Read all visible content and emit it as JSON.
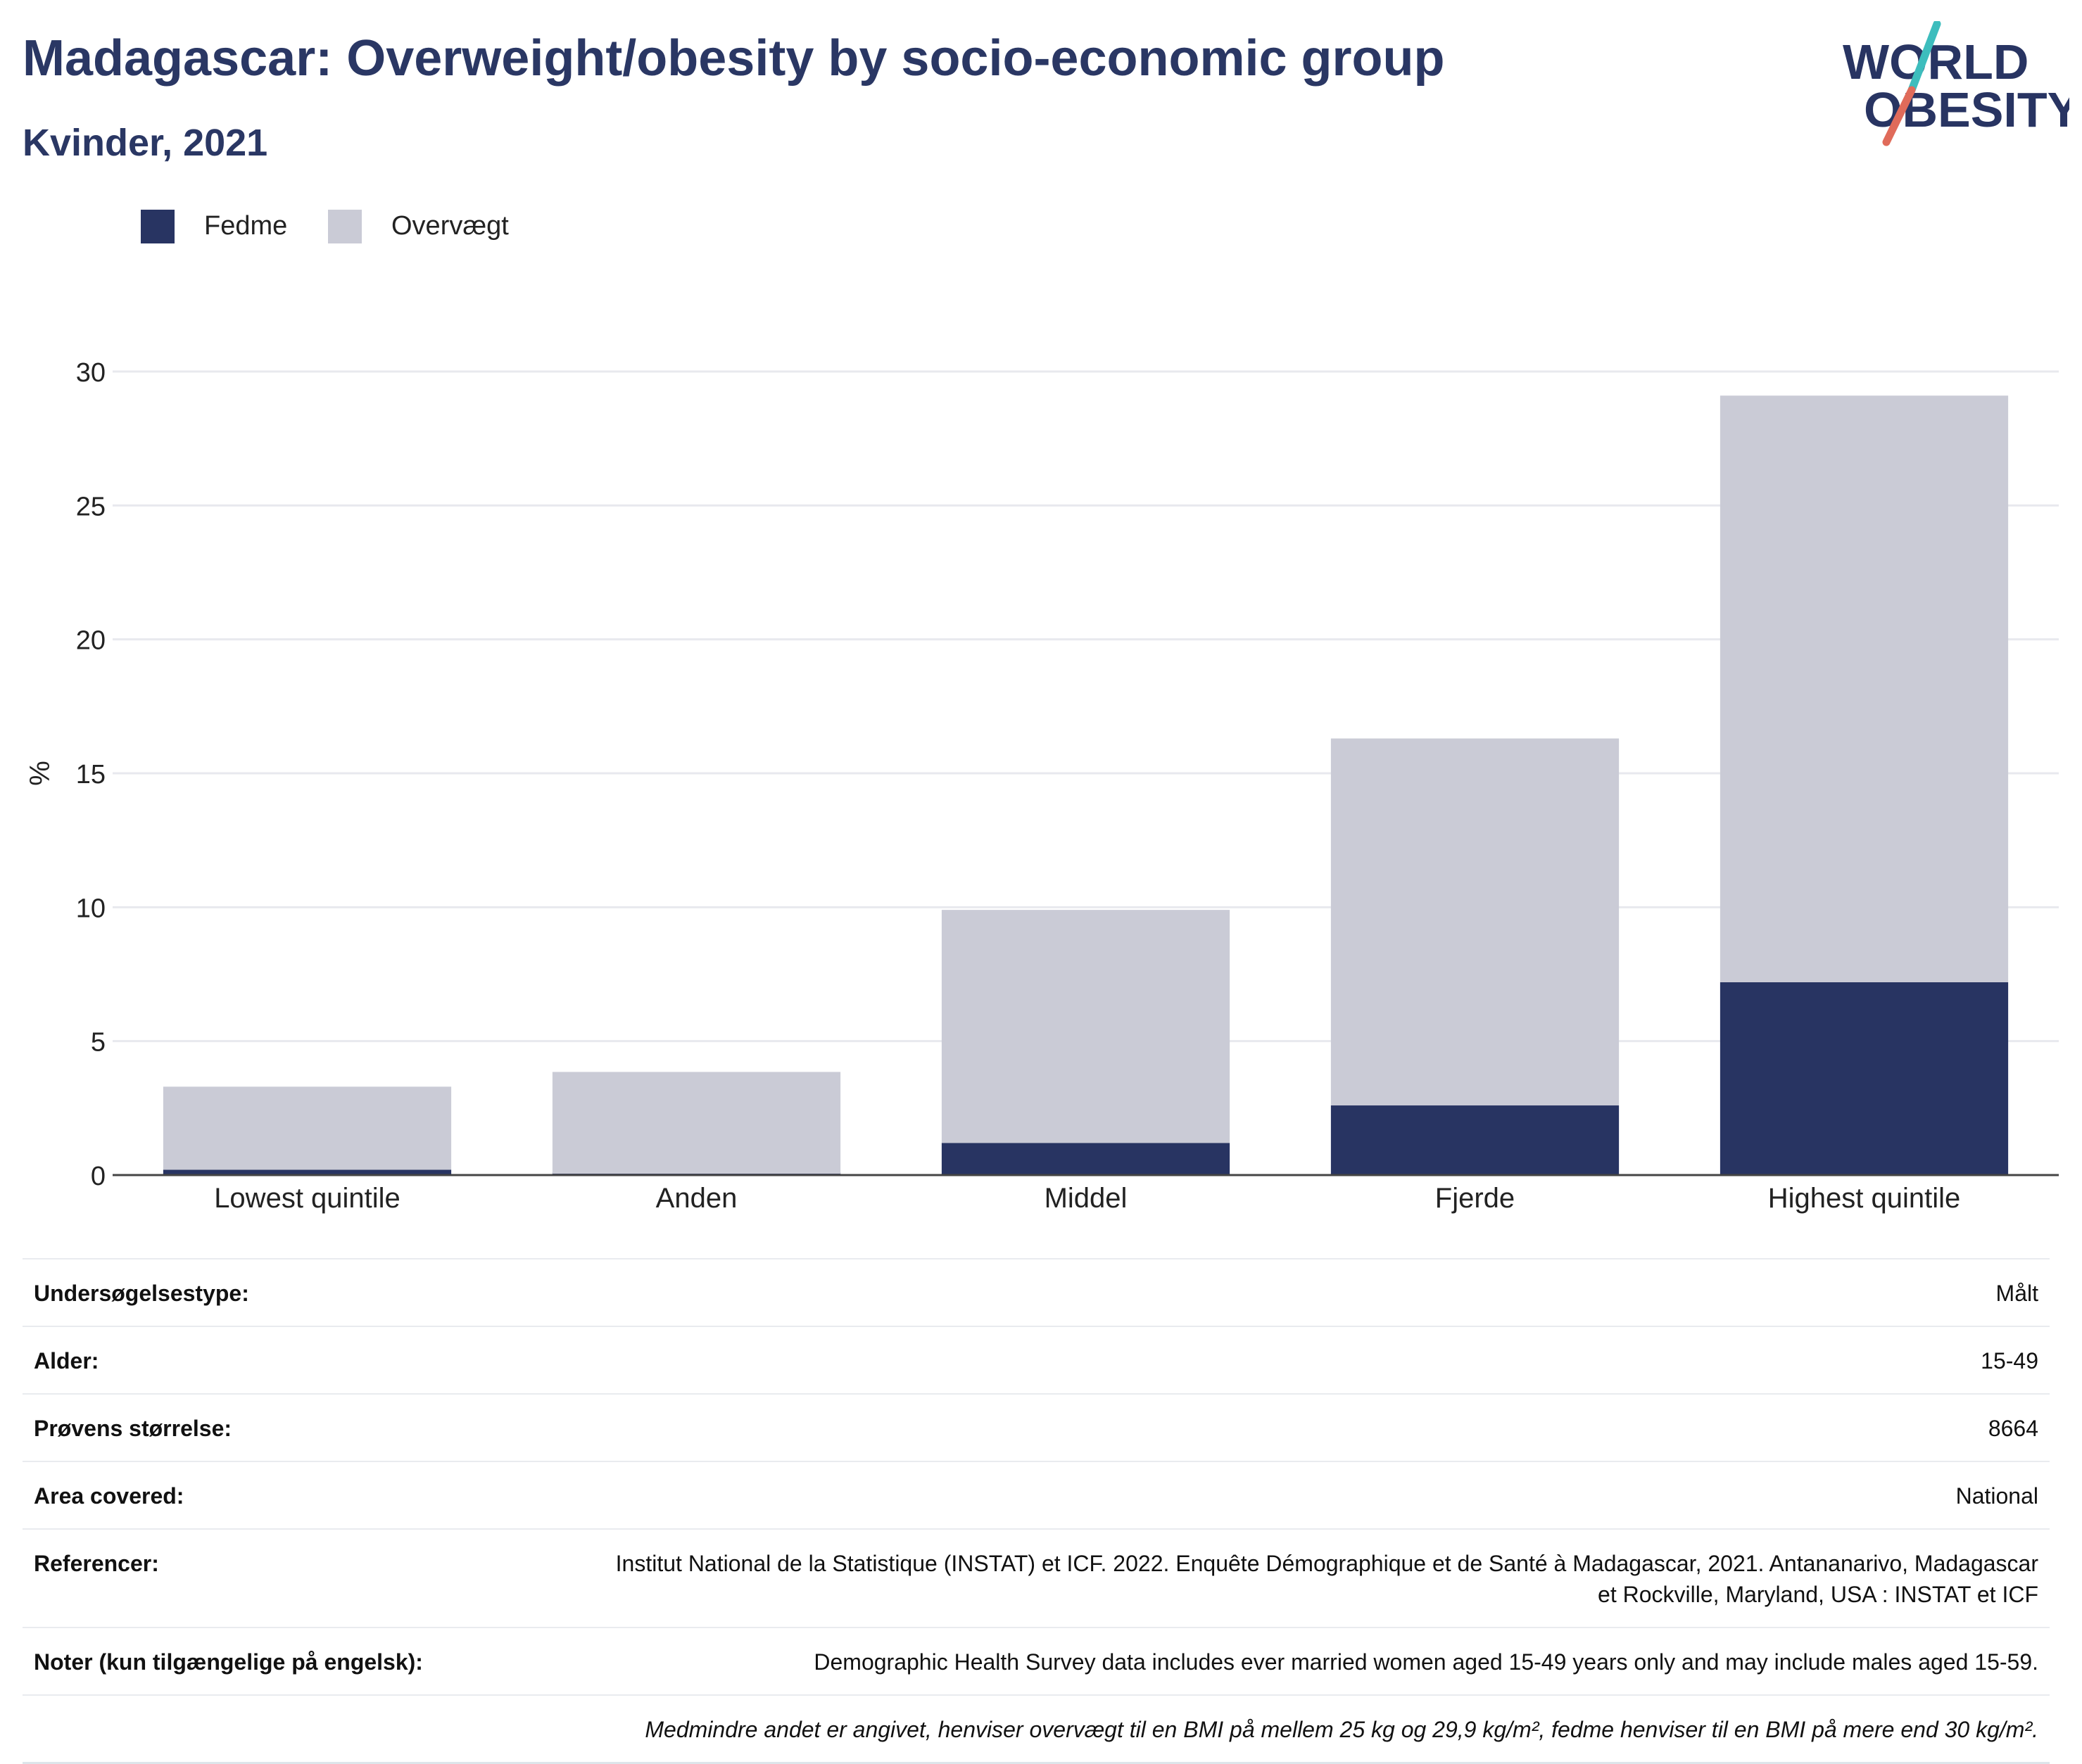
{
  "header": {
    "title": "Madagascar: Overweight/obesity by socio-economic group",
    "subtitle": "Kvinder, 2021"
  },
  "logo": {
    "line1": "WORLD",
    "line2": "OBESITY",
    "colors": {
      "text": "#283462",
      "slash_top": "#3dbdbd",
      "slash_bottom": "#e06b5a"
    }
  },
  "chart_data": {
    "type": "bar",
    "stacked": true,
    "categories": [
      "Lowest quintile",
      "Anden",
      "Middel",
      "Fjerde",
      "Highest quintile"
    ],
    "series": [
      {
        "name": "Fedme",
        "color": "#283462",
        "values": [
          0.2,
          0.05,
          1.2,
          2.6,
          7.2
        ]
      },
      {
        "name": "Overvægt",
        "color": "#cacbd6",
        "values": [
          3.1,
          3.8,
          8.7,
          13.7,
          21.9
        ]
      }
    ],
    "xlabel": "",
    "ylabel": "%",
    "ylim": [
      0,
      30
    ],
    "yticks": [
      0,
      5,
      10,
      15,
      20,
      25,
      30
    ],
    "grid": true,
    "legend_position": "top-left"
  },
  "meta": {
    "rows": [
      {
        "label": "Undersøgelsestype:",
        "value": "Målt"
      },
      {
        "label": "Alder:",
        "value": "15-49"
      },
      {
        "label": "Prøvens størrelse:",
        "value": "8664"
      },
      {
        "label": "Area covered:",
        "value": "National"
      },
      {
        "label": "Referencer:",
        "value": "Institut National de la Statistique (INSTAT) et ICF. 2022. Enquête Démographique et de Santé à Madagascar, 2021. Antananarivo, Madagascar et Rockville, Maryland, USA : INSTAT et ICF"
      },
      {
        "label": "Noter (kun tilgængelige på engelsk):",
        "value": "Demographic Health Survey data includes ever married women aged 15-49 years only and may include males aged 15-59."
      }
    ],
    "note": "Medmindre andet er angivet, henviser overvægt til en BMI på mellem 25 kg og 29,9 kg/m², fedme henviser til en BMI på mere end 30 kg/m²."
  }
}
